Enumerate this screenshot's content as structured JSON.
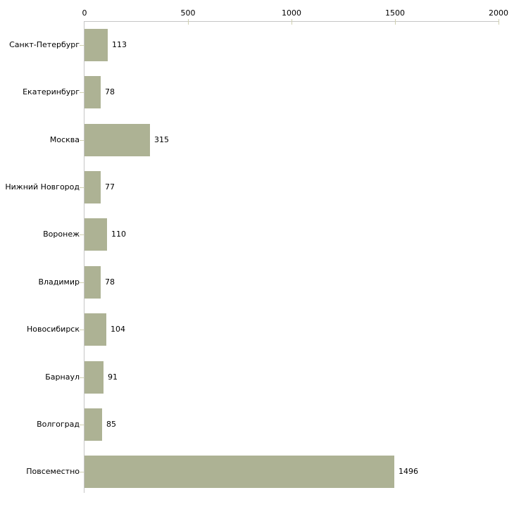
{
  "chart_data": {
    "type": "bar",
    "orientation": "horizontal",
    "title": "",
    "xlabel": "",
    "ylabel": "",
    "categories": [
      "Санкт-Петербург",
      "Екатеринбург",
      "Москва",
      "Нижний Новгород",
      "Воронеж",
      "Владимир",
      "Новосибирск",
      "Барнаул",
      "Волгоград",
      "Повсеместно"
    ],
    "values": [
      113,
      78,
      315,
      77,
      110,
      78,
      104,
      91,
      85,
      1496
    ],
    "value_labels": [
      "113",
      "78",
      "315",
      "77",
      "110",
      "78",
      "104",
      "91",
      "85",
      "1496"
    ],
    "xlim": [
      0,
      2000
    ],
    "xticks": [
      0,
      500,
      1000,
      1500,
      2000
    ],
    "xtick_labels": [
      "0",
      "500",
      "1000",
      "1500",
      "2000"
    ],
    "xaxis_position": "top",
    "grid": false,
    "legend": "none",
    "colors": {
      "bar": "#adb294",
      "axis_line": "#c6c6c6",
      "tick_mark": "#d0d0b0",
      "text": "#000000",
      "background": "#ffffff"
    }
  }
}
